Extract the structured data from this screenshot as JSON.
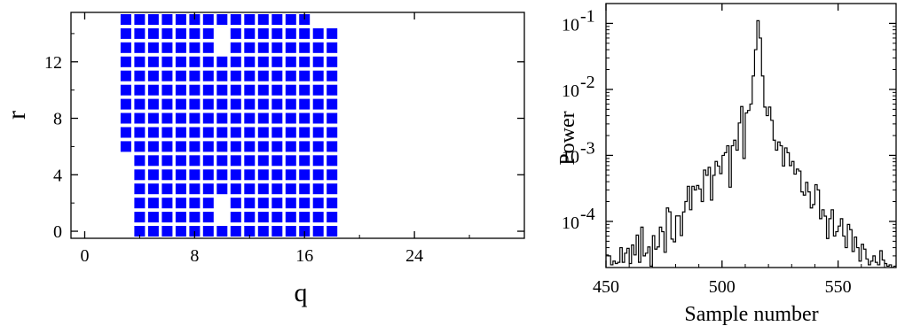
{
  "chart_data": [
    {
      "type": "scatter",
      "marker": "square",
      "marker_color": "#0000ff",
      "title": "",
      "xlabel": "q",
      "ylabel": "r",
      "xlim": [
        -1,
        32
      ],
      "ylim": [
        -0.5,
        15.5
      ],
      "x_ticks": [
        0,
        8,
        16,
        24
      ],
      "y_ticks": [
        0,
        4,
        8,
        12
      ],
      "grid": false,
      "points_description": "integer lattice points",
      "column_ranges": [
        {
          "q": 3,
          "r_min": 6,
          "r_max": 15
        },
        {
          "q": 4,
          "r_min": 0,
          "r_max": 15
        },
        {
          "q": 5,
          "r_min": 0,
          "r_max": 15
        },
        {
          "q": 6,
          "r_min": 0,
          "r_max": 15
        },
        {
          "q": 7,
          "r_min": 0,
          "r_max": 15
        },
        {
          "q": 8,
          "r_min": 0,
          "r_max": 15
        },
        {
          "q": 9,
          "r_min": 0,
          "r_max": 15
        },
        {
          "q": 10,
          "r_min": 0,
          "r_max": 15
        },
        {
          "q": 11,
          "r_min": 0,
          "r_max": 15
        },
        {
          "q": 12,
          "r_min": 0,
          "r_max": 15
        },
        {
          "q": 13,
          "r_min": 0,
          "r_max": 15
        },
        {
          "q": 14,
          "r_min": 0,
          "r_max": 15
        },
        {
          "q": 15,
          "r_min": 0,
          "r_max": 15
        },
        {
          "q": 16,
          "r_min": 0,
          "r_max": 15
        },
        {
          "q": 17,
          "r_min": 0,
          "r_max": 14
        },
        {
          "q": 18,
          "r_min": 0,
          "r_max": 14
        }
      ],
      "missing_points": [
        [
          10,
          14
        ],
        [
          10,
          13
        ],
        [
          10,
          2
        ],
        [
          10,
          1
        ]
      ]
    },
    {
      "type": "line",
      "style": "histogram-step",
      "title": "",
      "xlabel": "Sample number",
      "ylabel": "Power",
      "xlim": [
        450,
        575
      ],
      "ylim": [
        2e-05,
        0.2
      ],
      "yscale": "log",
      "x_ticks": [
        450,
        500,
        550
      ],
      "y_ticks": [
        {
          "value": 0.0001,
          "base": "10",
          "exp": "-4"
        },
        {
          "value": 0.001,
          "base": "10",
          "exp": "-3"
        },
        {
          "value": 0.01,
          "base": "10",
          "exp": "-2"
        },
        {
          "value": 0.1,
          "base": "10",
          "exp": "-1"
        }
      ],
      "grid": false,
      "line_color": "#000000",
      "x_start": 450,
      "x_step": 1,
      "series": [
        {
          "values": [
            3.1e-05,
            3e-05,
            2.2e-05,
            2.5e-05,
            2.3e-05,
            2.4e-05,
            4e-05,
            2.4e-05,
            3.3e-05,
            3.9e-05,
            2.3e-05,
            4.4e-05,
            3.1e-05,
            6.2e-05,
            2.4e-05,
            8.2e-05,
            3e-05,
            3.3e-05,
            4.1e-05,
            2.1e-05,
            6.1e-05,
            3.8e-05,
            4.1e-05,
            8.2e-05,
            7e-05,
            3.4e-05,
            0.00016,
            0.00014,
            5.4e-05,
            4.9e-05,
            0.000121,
            0.000121,
            6.1e-05,
            0.000139,
            0.0002,
            0.00034,
            0.00015,
            0.00034,
            0.0003,
            0.00035,
            0.00031,
            0.0002,
            0.0006,
            0.0005,
            0.00066,
            0.00021,
            0.0005,
            0.00081,
            0.00069,
            0.00053,
            0.001,
            0.0011,
            0.0014,
            0.00033,
            0.0014,
            0.0017,
            0.0012,
            0.0031,
            0.0055,
            0.0009,
            0.0044,
            0.0048,
            0.006,
            0.016,
            0.04,
            0.11,
            0.06,
            0.016,
            0.0054,
            0.004,
            0.0054,
            0.0034,
            0.0017,
            0.0012,
            0.0016,
            0.0014,
            0.00069,
            0.0013,
            0.0011,
            0.0007,
            0.00081,
            0.00052,
            0.00062,
            0.00058,
            0.00028,
            0.00025,
            0.00039,
            0.00028,
            0.00016,
            0.00018,
            0.00036,
            0.0003,
            0.00011,
            0.00015,
            0.00012,
            5.5e-05,
            0.00011,
            0.00015,
            6e-05,
            7e-05,
            8.5e-05,
            0.00011,
            6e-05,
            4e-05,
            9e-05,
            7.5e-05,
            3.5e-05,
            5.8e-05,
            4e-05,
            2.5e-05,
            4.5e-05,
            3.8e-05,
            2.7e-05,
            2.2e-05,
            2.5e-05,
            3e-05,
            2.4e-05,
            2.2e-05,
            3.6e-05,
            2.6e-05,
            2.3e-05,
            2.1e-05,
            2.2e-05,
            2e-05,
            2.1e-05
          ]
        }
      ]
    }
  ]
}
